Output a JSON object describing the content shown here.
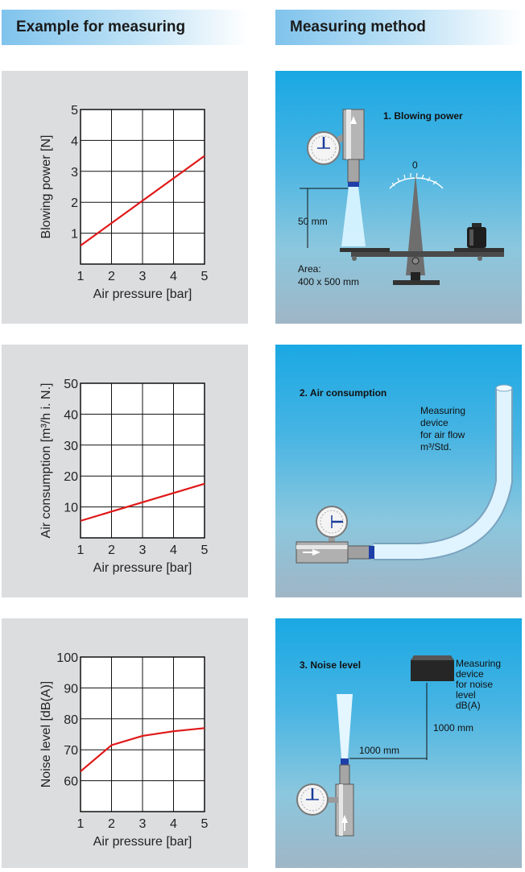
{
  "headers": {
    "left": "Example for measuring",
    "right": "Measuring method"
  },
  "colors": {
    "line": "#e01818",
    "panel_gray": "#dcdddf",
    "header_blue": "#7fc3ec",
    "panel_blue_top": "#1aa8e3"
  },
  "chart_data": [
    {
      "type": "line",
      "xlabel": "Air pressure [bar]",
      "ylabel": "Blowing power [N]",
      "x_ticks": [
        "1",
        "2",
        "3",
        "4",
        "5"
      ],
      "y_ticks": [
        "1",
        "2",
        "3",
        "4",
        "5"
      ],
      "xlim": [
        1,
        5
      ],
      "ylim": [
        0,
        5
      ],
      "grid": true,
      "series": [
        {
          "x": [
            1,
            5
          ],
          "y": [
            0.6,
            3.5
          ]
        }
      ]
    },
    {
      "type": "line",
      "xlabel": "Air pressure [bar]",
      "ylabel": "Air consumption [m³/h i. N.]",
      "x_ticks": [
        "1",
        "2",
        "3",
        "4",
        "5"
      ],
      "y_ticks": [
        "10",
        "20",
        "30",
        "40",
        "50"
      ],
      "xlim": [
        1,
        5
      ],
      "ylim": [
        0,
        50
      ],
      "grid": true,
      "series": [
        {
          "x": [
            1,
            2,
            3,
            4,
            5
          ],
          "y": [
            5.5,
            8.5,
            11.5,
            14.5,
            17.5
          ]
        }
      ]
    },
    {
      "type": "line",
      "xlabel": "Air pressure [bar]",
      "ylabel": "Noise level [dB(A)]",
      "x_ticks": [
        "1",
        "2",
        "3",
        "4",
        "5"
      ],
      "y_ticks": [
        "60",
        "70",
        "80",
        "90",
        "100"
      ],
      "xlim": [
        1,
        5
      ],
      "ylim": [
        50,
        100
      ],
      "grid": true,
      "series": [
        {
          "x": [
            1,
            2,
            3,
            4,
            5
          ],
          "y": [
            63,
            71.5,
            74.5,
            76,
            77
          ]
        }
      ]
    }
  ],
  "methods": {
    "blowing": {
      "title": "1. Blowing power",
      "scale_zero": "0",
      "distance": "50 mm",
      "area_label": "Area:",
      "area_value": "400 x 500 mm"
    },
    "air": {
      "title": "2. Air consumption",
      "device_lines": [
        "Measuring",
        "device",
        "for air flow",
        "m³/Std."
      ]
    },
    "noise": {
      "title": "3. Noise level",
      "device_lines": [
        "Measuring",
        "device",
        "for noise",
        "level",
        "dB(A)"
      ],
      "horizontal": "1000 mm",
      "vertical": "1000 mm"
    }
  }
}
